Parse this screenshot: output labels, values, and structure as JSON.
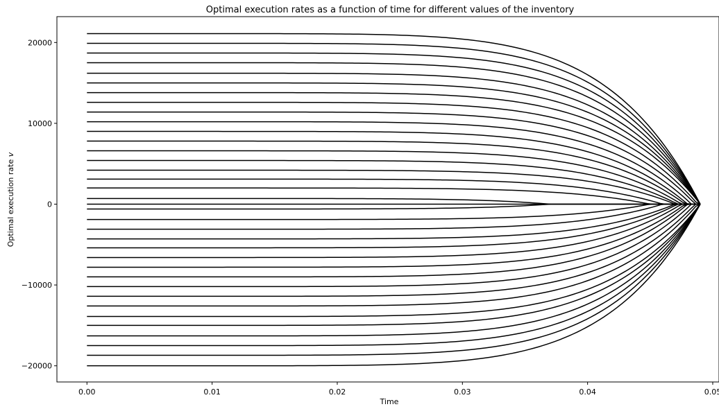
{
  "chart_data": {
    "type": "line",
    "title": "Optimal execution rates as a function of time for different values of the inventory",
    "xlabel": "Time",
    "ylabel": "Optimal execution rate",
    "ylabel_symbol": "v",
    "xlim": [
      -0.0024,
      0.0505
    ],
    "ylim": [
      -22000,
      23200
    ],
    "xticks": [
      0.0,
      0.01,
      0.02,
      0.03,
      0.04,
      0.05
    ],
    "xtick_labels": [
      "0.00",
      "0.01",
      "0.02",
      "0.03",
      "0.04",
      "0.05"
    ],
    "yticks": [
      -20000,
      -10000,
      0,
      10000,
      20000
    ],
    "ytick_labels": [
      "−20000",
      "−10000",
      "0",
      "10000",
      "20000"
    ],
    "grid": false,
    "line_color": "#000000",
    "series_initial_values": [
      21100,
      19900,
      18700,
      17500,
      16200,
      15000,
      13800,
      12600,
      11400,
      10200,
      9000,
      7800,
      6600,
      5400,
      4200,
      3100,
      2000,
      700,
      0,
      -600,
      -1900,
      -3100,
      -4300,
      -5400,
      -6600,
      -7800,
      -9000,
      -10200,
      -11400,
      -12600,
      -13900,
      -15000,
      -16300,
      -17500,
      -18700,
      -20000
    ],
    "series_end_times": [
      0.049,
      0.049,
      0.049,
      0.049,
      0.049,
      0.049,
      0.049,
      0.0488,
      0.0486,
      0.0483,
      0.048,
      0.0478,
      0.0475,
      0.0472,
      0.047,
      0.046,
      0.045,
      0.037,
      0.049,
      0.037,
      0.045,
      0.046,
      0.047,
      0.0472,
      0.0475,
      0.0478,
      0.048,
      0.0483,
      0.0486,
      0.0488,
      0.049,
      0.049,
      0.049,
      0.049,
      0.049,
      0.049
    ]
  }
}
